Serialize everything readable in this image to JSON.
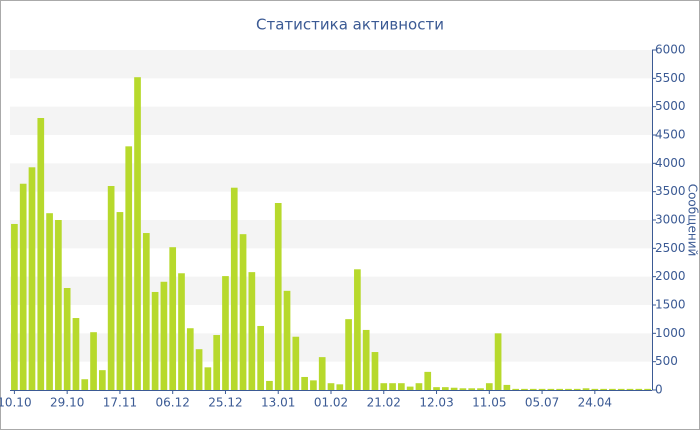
{
  "chart_data": {
    "type": "bar",
    "title": "Статистика активности",
    "y_label": "Сообщений",
    "categories": [
      "10.10",
      null,
      null,
      null,
      null,
      null,
      "29.10",
      null,
      null,
      null,
      null,
      null,
      "17.11",
      null,
      null,
      null,
      null,
      null,
      "06.12",
      null,
      null,
      null,
      null,
      null,
      "25.12",
      null,
      null,
      null,
      null,
      null,
      "13.01",
      null,
      null,
      null,
      null,
      null,
      "01.02",
      null,
      null,
      null,
      null,
      null,
      "21.02",
      null,
      null,
      null,
      null,
      null,
      "12.03",
      null,
      null,
      null,
      null,
      null,
      "11.05",
      null,
      null,
      null,
      null,
      null,
      "05.07",
      null,
      null,
      null,
      null,
      null,
      "24.04",
      null,
      null,
      null,
      null,
      null,
      null
    ],
    "values": [
      2930,
      3640,
      3930,
      4800,
      3120,
      3000,
      1800,
      1270,
      190,
      1020,
      350,
      3600,
      3140,
      4300,
      5520,
      2770,
      1730,
      1910,
      2520,
      2060,
      1090,
      720,
      400,
      970,
      2010,
      3570,
      2750,
      2080,
      1130,
      160,
      3300,
      1750,
      940,
      230,
      170,
      580,
      120,
      100,
      1250,
      2130,
      1060,
      670,
      120,
      120,
      120,
      60,
      120,
      320,
      50,
      50,
      40,
      30,
      30,
      30,
      120,
      1000,
      90,
      20,
      20,
      20,
      20,
      20,
      20,
      20,
      20,
      30,
      20,
      20,
      20,
      20,
      20,
      20,
      20
    ],
    "color": "#b7d92c",
    "ylim": [
      0,
      6000
    ],
    "yticks": [
      0,
      500,
      1000,
      1500,
      2000,
      2500,
      3000,
      3500,
      4000,
      4500,
      5000,
      5500,
      6000
    ],
    "grid": true
  }
}
